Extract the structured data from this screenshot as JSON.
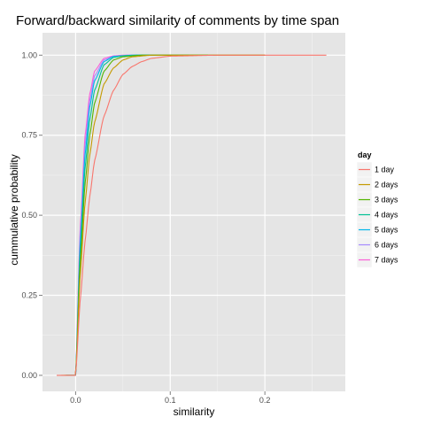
{
  "chart_data": {
    "type": "line",
    "title": "Forward/backward similarity of comments by time span",
    "xlabel": "similarity",
    "ylabel": "cummulative probability",
    "xlim": [
      -0.035,
      0.285
    ],
    "ylim": [
      -0.05,
      1.07
    ],
    "x_ticks": [
      0.0,
      0.1,
      0.2
    ],
    "x_tick_labels": [
      "0.0",
      "0.1",
      "0.2"
    ],
    "y_ticks": [
      0.0,
      0.25,
      0.5,
      0.75,
      1.0
    ],
    "y_tick_labels": [
      "0.00",
      "0.25",
      "0.50",
      "0.75",
      "1.00"
    ],
    "grid": true,
    "legend": {
      "title": "day",
      "position": "right"
    },
    "series": [
      {
        "name": "1 day",
        "color": "#F8766D",
        "xmin": -0.02,
        "xmax": 0.265,
        "points": [
          [
            -0.02,
            0
          ],
          [
            0,
            0.0
          ],
          [
            0.005,
            0.24
          ],
          [
            0.01,
            0.42
          ],
          [
            0.015,
            0.56
          ],
          [
            0.02,
            0.67
          ],
          [
            0.03,
            0.81
          ],
          [
            0.04,
            0.89
          ],
          [
            0.05,
            0.94
          ],
          [
            0.06,
            0.965
          ],
          [
            0.07,
            0.98
          ],
          [
            0.08,
            0.99
          ],
          [
            0.1,
            0.997
          ],
          [
            0.15,
            1.0
          ],
          [
            0.265,
            1.0
          ]
        ]
      },
      {
        "name": "2 days",
        "color": "#C49A00",
        "xmin": -0.015,
        "xmax": 0.2,
        "points": [
          [
            -0.015,
            0
          ],
          [
            0,
            0.0
          ],
          [
            0.005,
            0.32
          ],
          [
            0.01,
            0.54
          ],
          [
            0.015,
            0.69
          ],
          [
            0.02,
            0.79
          ],
          [
            0.03,
            0.91
          ],
          [
            0.04,
            0.96
          ],
          [
            0.05,
            0.985
          ],
          [
            0.06,
            0.995
          ],
          [
            0.08,
            1.0
          ],
          [
            0.2,
            1.0
          ]
        ]
      },
      {
        "name": "3 days",
        "color": "#53B400",
        "xmin": -0.012,
        "xmax": 0.2,
        "points": [
          [
            -0.012,
            0
          ],
          [
            0,
            0.0
          ],
          [
            0.005,
            0.36
          ],
          [
            0.01,
            0.6
          ],
          [
            0.015,
            0.75
          ],
          [
            0.02,
            0.85
          ],
          [
            0.03,
            0.95
          ],
          [
            0.04,
            0.985
          ],
          [
            0.05,
            0.995
          ],
          [
            0.07,
            1.0
          ],
          [
            0.2,
            1.0
          ]
        ]
      },
      {
        "name": "4 days",
        "color": "#00C094",
        "xmin": -0.01,
        "xmax": 0.14,
        "points": [
          [
            -0.01,
            0
          ],
          [
            0,
            0.0
          ],
          [
            0.005,
            0.39
          ],
          [
            0.01,
            0.65
          ],
          [
            0.015,
            0.8
          ],
          [
            0.02,
            0.89
          ],
          [
            0.03,
            0.97
          ],
          [
            0.04,
            0.993
          ],
          [
            0.05,
            0.998
          ],
          [
            0.065,
            1.0
          ],
          [
            0.14,
            1.0
          ]
        ]
      },
      {
        "name": "5 days",
        "color": "#00B6EB",
        "xmin": -0.01,
        "xmax": 0.12,
        "points": [
          [
            -0.01,
            0
          ],
          [
            0,
            0.0
          ],
          [
            0.005,
            0.42
          ],
          [
            0.01,
            0.69
          ],
          [
            0.015,
            0.84
          ],
          [
            0.02,
            0.92
          ],
          [
            0.03,
            0.98
          ],
          [
            0.04,
            0.996
          ],
          [
            0.06,
            1.0
          ],
          [
            0.12,
            1.0
          ]
        ]
      },
      {
        "name": "6 days",
        "color": "#A58AFF",
        "xmin": -0.01,
        "xmax": 0.1,
        "points": [
          [
            -0.01,
            0
          ],
          [
            0,
            0.0
          ],
          [
            0.005,
            0.45
          ],
          [
            0.01,
            0.72
          ],
          [
            0.015,
            0.86
          ],
          [
            0.02,
            0.935
          ],
          [
            0.03,
            0.985
          ],
          [
            0.04,
            0.997
          ],
          [
            0.055,
            1.0
          ],
          [
            0.1,
            1.0
          ]
        ]
      },
      {
        "name": "7 days",
        "color": "#FB61D7",
        "xmin": -0.01,
        "xmax": 0.1,
        "points": [
          [
            -0.01,
            0
          ],
          [
            0,
            0.0
          ],
          [
            0.005,
            0.47
          ],
          [
            0.01,
            0.75
          ],
          [
            0.015,
            0.88
          ],
          [
            0.02,
            0.95
          ],
          [
            0.03,
            0.99
          ],
          [
            0.04,
            0.998
          ],
          [
            0.05,
            1.0
          ],
          [
            0.1,
            1.0
          ]
        ]
      }
    ]
  }
}
